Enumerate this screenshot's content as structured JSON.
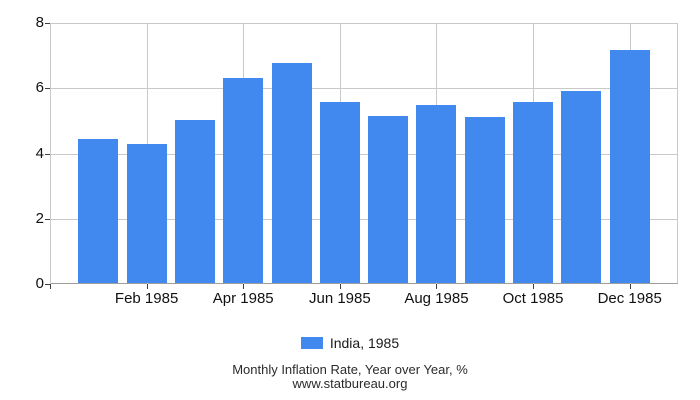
{
  "chart_data": {
    "type": "bar",
    "title": "Monthly Inflation Rate, Year over Year, %",
    "subtitle": "www.statbureau.org",
    "categories": [
      "Jan 1985",
      "Feb 1985",
      "Mar 1985",
      "Apr 1985",
      "May 1985",
      "Jun 1985",
      "Jul 1985",
      "Aug 1985",
      "Sep 1985",
      "Oct 1985",
      "Nov 1985",
      "Dec 1985"
    ],
    "series": [
      {
        "name": "India, 1985",
        "color": "#4189ee",
        "values": [
          4.45,
          4.29,
          5.03,
          6.3,
          6.78,
          5.58,
          5.15,
          5.49,
          5.12,
          5.58,
          5.93,
          7.18
        ]
      }
    ],
    "ylabel": "",
    "xlabel": "",
    "ylim": [
      0,
      8
    ],
    "y_ticks": [
      0,
      2,
      4,
      6,
      8
    ],
    "x_tick_labels": [
      "Feb 1985",
      "Apr 1985",
      "Jun 1985",
      "Aug 1985",
      "Oct 1985",
      "Dec 1985"
    ],
    "x_tick_indices": [
      1,
      3,
      5,
      7,
      9,
      11
    ],
    "grid": "on",
    "legend_position": "bottom"
  },
  "legend": {
    "label": "India, 1985"
  },
  "footer": {
    "line1": "Monthly Inflation Rate, Year over Year, %",
    "line2": "www.statbureau.org"
  },
  "colors": {
    "bar": "#4189ee",
    "gridline": "#c9c9c9",
    "axis_line": "#9e9e9e",
    "tick": "#404040",
    "label_text": "#111111",
    "footer_text": "#2b2b2b"
  }
}
